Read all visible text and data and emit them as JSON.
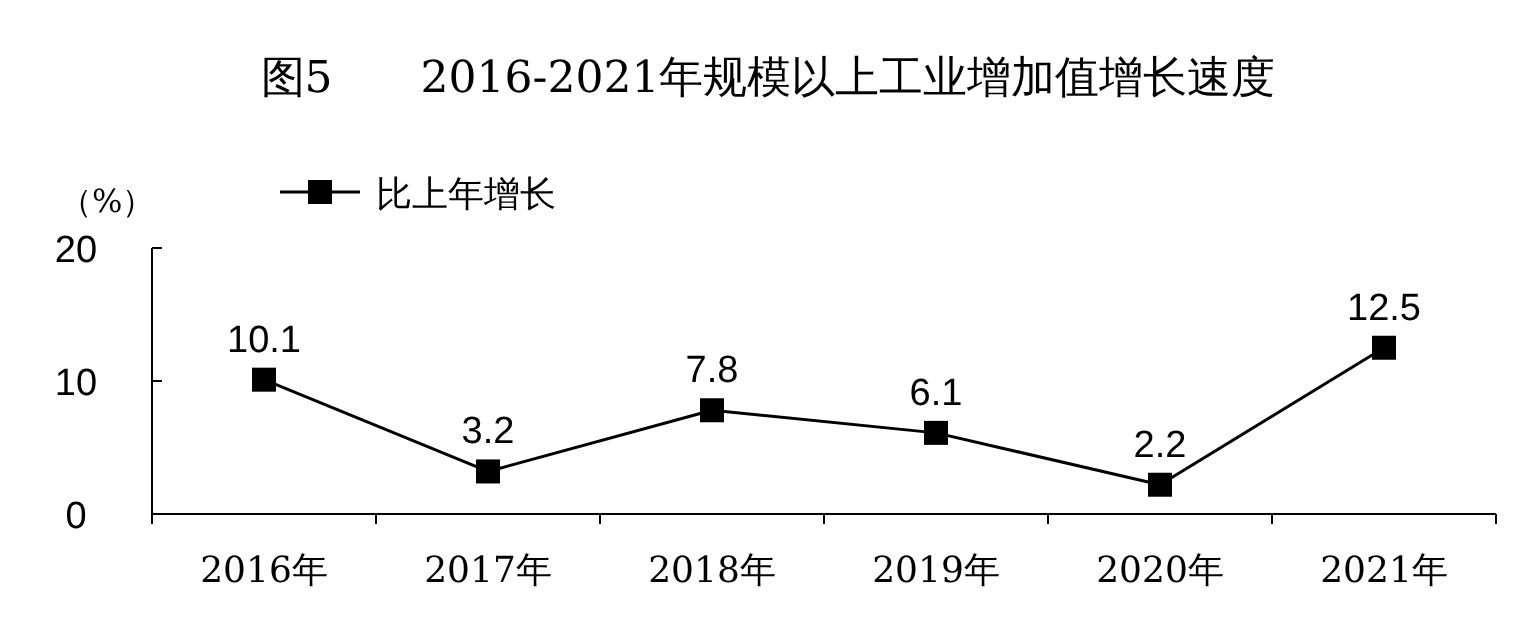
{
  "chart_data": {
    "type": "line",
    "title": "图5　　2016-2021年规模以上工业增加值增长速度",
    "ylabel": "（%）",
    "categories": [
      "2016年",
      "2017年",
      "2018年",
      "2019年",
      "2020年",
      "2021年"
    ],
    "series": [
      {
        "name": "比上年增长",
        "color": "#000000",
        "values": [
          10.1,
          3.2,
          7.8,
          6.1,
          2.2,
          12.5
        ]
      }
    ],
    "ylim": [
      0,
      20
    ],
    "yticks": [
      0,
      10,
      20
    ],
    "marker": "square",
    "line_style": "solid",
    "data_labels": true,
    "legend": "top left",
    "grid": false
  }
}
